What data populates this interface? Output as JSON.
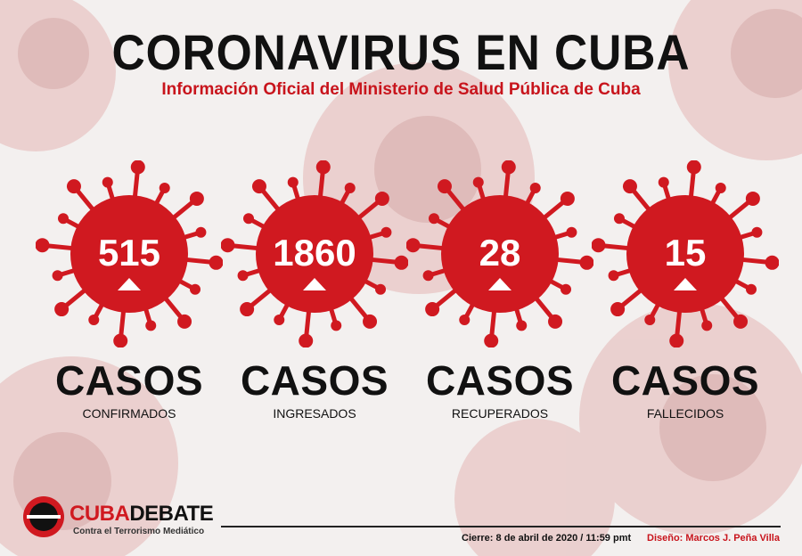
{
  "title": "CORONAVIRUS EN CUBA",
  "subtitle": "Información Oficial del Ministerio de Salud Pública de Cuba",
  "colors": {
    "accent": "#d01920",
    "text": "#111111"
  },
  "stats": [
    {
      "number": "515",
      "label": "CASOS",
      "sublabel": "CONFIRMADOS",
      "trend": "up-arrow-icon"
    },
    {
      "number": "1860",
      "label": "CASOS",
      "sublabel": "INGRESADOS",
      "trend": "up-arrow-icon"
    },
    {
      "number": "28",
      "label": "CASOS",
      "sublabel": "RECUPERADOS",
      "trend": "up-arrow-icon"
    },
    {
      "number": "15",
      "label": "CASOS",
      "sublabel": "FALLECIDOS",
      "trend": "up-arrow-icon"
    }
  ],
  "logo": {
    "brand_a": "CUBA",
    "brand_b": "DEBATE",
    "tagline": "Contra el Terrorismo Mediático"
  },
  "footer": {
    "cierre": "Cierre: 8 de abril de 2020 / 11:59 pmt",
    "credit": "Diseño: Marcos J. Peña Villa"
  }
}
